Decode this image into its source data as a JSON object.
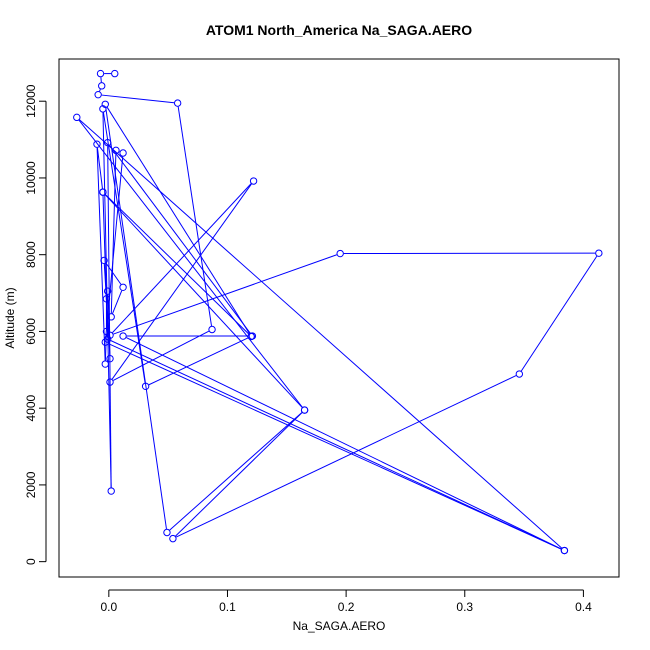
{
  "chart_data": {
    "type": "line",
    "title": "ATOM1 North_America Na_SAGA.AERO",
    "xlabel": "Na_SAGA.AERO",
    "ylabel": "Altitude (m)",
    "xlim": [
      -0.042,
      0.43
    ],
    "ylim": [
      -400,
      13100
    ],
    "xticks": [
      0.0,
      0.1,
      0.2,
      0.3,
      0.4
    ],
    "xtick_labels": [
      "0.0",
      "0.1",
      "0.2",
      "0.3",
      "0.4"
    ],
    "yticks": [
      0,
      2000,
      4000,
      6000,
      8000,
      10000,
      12000
    ],
    "ytick_labels": [
      "0",
      "2000",
      "4000",
      "6000",
      "8000",
      "10000",
      "12000"
    ],
    "grid": false,
    "legend": "none",
    "series": [
      {
        "color": "#0000ff",
        "marker": "open-circle",
        "points": [
          {
            "x": 0.005,
            "y": 12720
          },
          {
            "x": -0.007,
            "y": 12720
          },
          {
            "x": -0.006,
            "y": 12400
          },
          {
            "x": -0.009,
            "y": 12170
          },
          {
            "x": 0.058,
            "y": 11950
          },
          {
            "x": 0.087,
            "y": 6050
          },
          {
            "x": 0.001,
            "y": 4680
          },
          {
            "x": 0.122,
            "y": 9920
          },
          {
            "x": 0.001,
            "y": 5900
          },
          {
            "x": 0.195,
            "y": 8030
          },
          {
            "x": 0.413,
            "y": 8040
          },
          {
            "x": 0.346,
            "y": 4890
          },
          {
            "x": 0.054,
            "y": 600
          },
          {
            "x": 0.165,
            "y": 3950
          },
          {
            "x": 0.049,
            "y": 760
          },
          {
            "x": -0.003,
            "y": 11920
          },
          {
            "x": 0.12,
            "y": 5870
          },
          {
            "x": 0.031,
            "y": 4570
          },
          {
            "x": -0.005,
            "y": 11800
          },
          {
            "x": 0.002,
            "y": 1840
          },
          {
            "x": -0.001,
            "y": 10920
          },
          {
            "x": 0.121,
            "y": 5880
          },
          {
            "x": 0.012,
            "y": 5880
          },
          {
            "x": 0.384,
            "y": 290
          },
          {
            "x": -0.003,
            "y": 5720
          },
          {
            "x": 0.012,
            "y": 10650
          },
          {
            "x": 0.006,
            "y": 10720
          },
          {
            "x": 0.002,
            "y": 6380
          },
          {
            "x": 0.012,
            "y": 7150
          },
          {
            "x": -0.004,
            "y": 7850
          },
          {
            "x": 0.001,
            "y": 5290
          },
          {
            "x": -0.001,
            "y": 7050
          },
          {
            "x": -0.002,
            "y": 6850
          },
          {
            "x": -0.002,
            "y": 6000
          },
          {
            "x": -0.003,
            "y": 5150
          },
          {
            "x": -0.01,
            "y": 10880
          },
          {
            "x": -0.005,
            "y": 9630
          },
          {
            "x": -0.001,
            "y": 5800
          },
          {
            "x": 0.384,
            "y": 290
          },
          {
            "x": -0.027,
            "y": 11580
          },
          {
            "x": 0.165,
            "y": 3950
          },
          {
            "x": -0.005,
            "y": 9630
          },
          {
            "x": 0.12,
            "y": 5870
          }
        ]
      }
    ]
  }
}
